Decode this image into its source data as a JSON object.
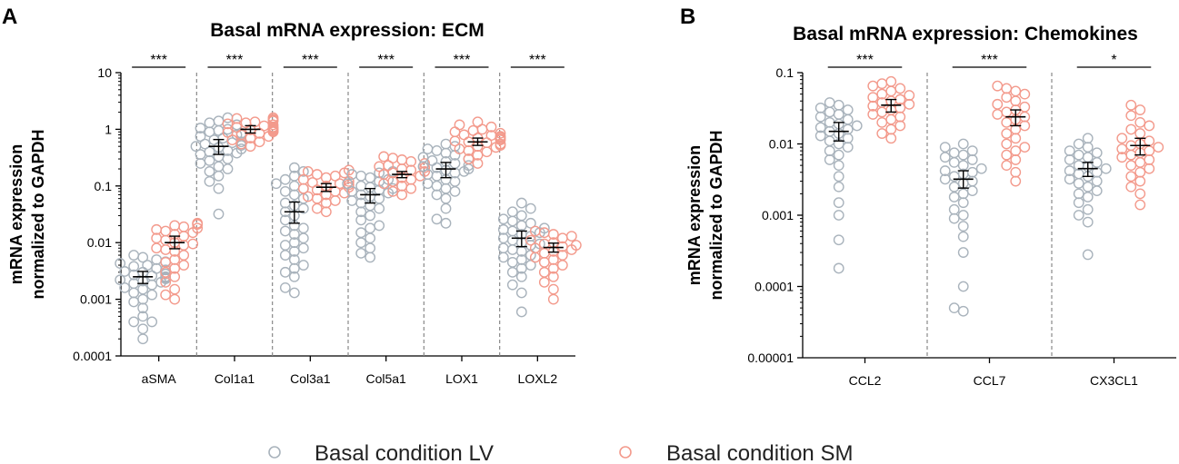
{
  "colors": {
    "lv": "#a9b3bc",
    "sm": "#f39a8c",
    "axis": "#000000",
    "divider": "#888888"
  },
  "legend": {
    "lv_label": "Basal condition LV",
    "sm_label": "Basal condition SM"
  },
  "y_axis_label": [
    "mRNA expression",
    "normalized to GAPDH"
  ],
  "chart_data": [
    {
      "panel": "A",
      "type": "scatter",
      "title": "Basal mRNA expression: ECM",
      "ylabel": "mRNA expression normalized to GAPDH",
      "yscale": "log",
      "ylim": [
        0.0001,
        10
      ],
      "yticks": [
        0.0001,
        0.001,
        0.01,
        0.1,
        1,
        10
      ],
      "ytick_labels": [
        "0.0001",
        "0.001",
        "0.01",
        "0.1",
        "1",
        "10"
      ],
      "categories": [
        "aSMA",
        "Col1a1",
        "Col3a1",
        "Col5a1",
        "LOX1",
        "LOXL2"
      ],
      "significance": [
        "***",
        "***",
        "***",
        "***",
        "***",
        "***"
      ],
      "series": [
        {
          "name": "Basal condition LV",
          "mean": [
            0.0025,
            0.5,
            0.035,
            0.07,
            0.2,
            0.012
          ],
          "err_low": [
            0.0019,
            0.36,
            0.022,
            0.05,
            0.14,
            0.0085
          ],
          "err_high": [
            0.0031,
            0.66,
            0.052,
            0.09,
            0.26,
            0.016
          ],
          "points": [
            [
              0.0002,
              0.0003,
              0.0004,
              0.0004,
              0.0005,
              0.0007,
              0.0009,
              0.001,
              0.0012,
              0.0013,
              0.0015,
              0.0016,
              0.0018,
              0.0019,
              0.002,
              0.0021,
              0.0022,
              0.0023,
              0.0024,
              0.0025,
              0.0026,
              0.0027,
              0.0028,
              0.003,
              0.0031,
              0.0033,
              0.0035,
              0.0038,
              0.004,
              0.0043,
              0.0046,
              0.005,
              0.0055,
              0.006
            ],
            [
              0.032,
              0.09,
              0.12,
              0.15,
              0.18,
              0.2,
              0.22,
              0.25,
              0.28,
              0.3,
              0.33,
              0.36,
              0.38,
              0.4,
              0.42,
              0.45,
              0.48,
              0.5,
              0.52,
              0.55,
              0.58,
              0.6,
              0.65,
              0.7,
              0.75,
              0.8,
              0.85,
              0.9,
              0.95,
              1.0,
              1.05,
              1.2,
              1.3,
              1.4,
              1.6
            ],
            [
              0.0013,
              0.0016,
              0.0025,
              0.003,
              0.0035,
              0.004,
              0.005,
              0.006,
              0.007,
              0.008,
              0.009,
              0.01,
              0.012,
              0.014,
              0.016,
              0.018,
              0.02,
              0.025,
              0.03,
              0.035,
              0.04,
              0.045,
              0.05,
              0.06,
              0.07,
              0.08,
              0.09,
              0.1,
              0.11,
              0.13,
              0.15,
              0.18,
              0.21
            ],
            [
              0.0055,
              0.0065,
              0.008,
              0.01,
              0.012,
              0.015,
              0.018,
              0.02,
              0.025,
              0.03,
              0.035,
              0.04,
              0.045,
              0.05,
              0.055,
              0.06,
              0.065,
              0.07,
              0.075,
              0.08,
              0.085,
              0.09,
              0.095,
              0.1,
              0.11,
              0.12,
              0.13,
              0.14,
              0.15,
              0.16,
              0.17,
              0.18
            ],
            [
              0.022,
              0.026,
              0.04,
              0.06,
              0.07,
              0.08,
              0.09,
              0.1,
              0.11,
              0.12,
              0.13,
              0.15,
              0.16,
              0.17,
              0.18,
              0.19,
              0.2,
              0.21,
              0.22,
              0.23,
              0.25,
              0.27,
              0.28,
              0.3,
              0.32,
              0.35,
              0.38,
              0.42,
              0.45,
              0.5,
              0.55
            ],
            [
              0.0006,
              0.0013,
              0.0018,
              0.0025,
              0.003,
              0.0035,
              0.004,
              0.0045,
              0.005,
              0.0055,
              0.006,
              0.007,
              0.0075,
              0.008,
              0.009,
              0.0095,
              0.01,
              0.011,
              0.012,
              0.013,
              0.014,
              0.015,
              0.016,
              0.017,
              0.018,
              0.02,
              0.022,
              0.024,
              0.026,
              0.03,
              0.035,
              0.04,
              0.05
            ]
          ]
        },
        {
          "name": "Basal condition SM",
          "mean": [
            0.01,
            1.0,
            0.095,
            0.16,
            0.6,
            0.0082
          ],
          "err_low": [
            0.0078,
            0.86,
            0.08,
            0.14,
            0.52,
            0.0068
          ],
          "err_high": [
            0.013,
            1.16,
            0.11,
            0.18,
            0.7,
            0.0098
          ],
          "points": [
            [
              0.001,
              0.0012,
              0.0015,
              0.002,
              0.0025,
              0.003,
              0.0035,
              0.004,
              0.0045,
              0.005,
              0.006,
              0.007,
              0.0075,
              0.008,
              0.009,
              0.0095,
              0.01,
              0.011,
              0.012,
              0.013,
              0.014,
              0.015,
              0.016,
              0.017,
              0.018,
              0.019,
              0.02,
              0.021,
              0.022
            ],
            [
              0.5,
              0.55,
              0.6,
              0.65,
              0.7,
              0.75,
              0.8,
              0.85,
              0.88,
              0.9,
              0.92,
              0.95,
              0.98,
              1.0,
              1.02,
              1.05,
              1.08,
              1.1,
              1.15,
              1.2,
              1.25,
              1.3,
              1.35,
              1.4,
              1.45,
              1.5,
              1.55,
              1.6
            ],
            [
              0.035,
              0.04,
              0.05,
              0.055,
              0.06,
              0.065,
              0.07,
              0.075,
              0.08,
              0.085,
              0.09,
              0.095,
              0.1,
              0.105,
              0.11,
              0.115,
              0.12,
              0.13,
              0.14,
              0.15,
              0.16,
              0.17,
              0.18,
              0.19
            ],
            [
              0.07,
              0.08,
              0.09,
              0.1,
              0.11,
              0.12,
              0.13,
              0.14,
              0.15,
              0.16,
              0.17,
              0.18,
              0.19,
              0.2,
              0.21,
              0.22,
              0.23,
              0.25,
              0.27,
              0.29,
              0.31,
              0.33
            ],
            [
              0.25,
              0.3,
              0.35,
              0.4,
              0.42,
              0.45,
              0.48,
              0.5,
              0.52,
              0.55,
              0.58,
              0.6,
              0.62,
              0.65,
              0.68,
              0.7,
              0.72,
              0.75,
              0.78,
              0.8,
              0.85,
              0.9,
              0.95,
              1.0,
              1.1,
              1.2,
              1.35
            ],
            [
              0.001,
              0.0015,
              0.002,
              0.0025,
              0.003,
              0.0035,
              0.004,
              0.0045,
              0.005,
              0.0055,
              0.006,
              0.0065,
              0.007,
              0.0075,
              0.008,
              0.0085,
              0.009,
              0.0095,
              0.01,
              0.011,
              0.012,
              0.013,
              0.014,
              0.015,
              0.016
            ]
          ]
        }
      ]
    },
    {
      "panel": "B",
      "type": "scatter",
      "title": "Basal mRNA expression: Chemokines",
      "ylabel": "mRNA expression normalized to GAPDH",
      "yscale": "log",
      "ylim": [
        1e-05,
        0.1
      ],
      "yticks": [
        1e-05,
        0.0001,
        0.001,
        0.01,
        0.1
      ],
      "ytick_labels": [
        "0.00001",
        "0.0001",
        "0.001",
        "0.01",
        "0.1"
      ],
      "categories": [
        "CCL2",
        "CCL7",
        "CX3CL1"
      ],
      "significance": [
        "***",
        "***",
        "*"
      ],
      "series": [
        {
          "name": "Basal condition LV",
          "mean": [
            0.015,
            0.0032,
            0.0045
          ],
          "err_low": [
            0.011,
            0.0024,
            0.0035
          ],
          "err_high": [
            0.02,
            0.0042,
            0.0055
          ],
          "points": [
            [
              0.00018,
              0.00045,
              0.001,
              0.0015,
              0.0025,
              0.0035,
              0.005,
              0.006,
              0.007,
              0.008,
              0.009,
              0.01,
              0.011,
              0.012,
              0.013,
              0.014,
              0.015,
              0.016,
              0.017,
              0.018,
              0.019,
              0.02,
              0.022,
              0.024,
              0.026,
              0.028,
              0.03,
              0.032,
              0.035,
              0.038
            ],
            [
              4.5e-05,
              5e-05,
              0.0001,
              0.0003,
              0.0005,
              0.0007,
              0.0009,
              0.001,
              0.0012,
              0.0015,
              0.0018,
              0.002,
              0.0022,
              0.0025,
              0.0028,
              0.003,
              0.0032,
              0.0035,
              0.0038,
              0.004,
              0.0042,
              0.0045,
              0.005,
              0.0055,
              0.006,
              0.0065,
              0.007,
              0.0075,
              0.008,
              0.009,
              0.01
            ],
            [
              0.00028,
              0.0008,
              0.001,
              0.0012,
              0.0015,
              0.0018,
              0.002,
              0.0022,
              0.0025,
              0.0028,
              0.003,
              0.0032,
              0.0035,
              0.0038,
              0.004,
              0.0042,
              0.0045,
              0.0048,
              0.005,
              0.0055,
              0.006,
              0.0065,
              0.007,
              0.0075,
              0.008,
              0.009,
              0.01,
              0.012
            ]
          ]
        },
        {
          "name": "Basal condition SM",
          "mean": [
            0.035,
            0.024,
            0.0095
          ],
          "err_low": [
            0.028,
            0.018,
            0.007
          ],
          "err_high": [
            0.042,
            0.03,
            0.012
          ],
          "points": [
            [
              0.012,
              0.014,
              0.016,
              0.018,
              0.02,
              0.022,
              0.024,
              0.026,
              0.028,
              0.03,
              0.032,
              0.034,
              0.036,
              0.038,
              0.04,
              0.042,
              0.045,
              0.048,
              0.05,
              0.055,
              0.06,
              0.065,
              0.07,
              0.075
            ],
            [
              0.003,
              0.004,
              0.005,
              0.006,
              0.007,
              0.008,
              0.009,
              0.01,
              0.012,
              0.014,
              0.016,
              0.018,
              0.02,
              0.022,
              0.024,
              0.026,
              0.028,
              0.03,
              0.033,
              0.036,
              0.04,
              0.045,
              0.05,
              0.055,
              0.06,
              0.065
            ],
            [
              0.0014,
              0.002,
              0.0025,
              0.003,
              0.0035,
              0.004,
              0.0045,
              0.005,
              0.0055,
              0.006,
              0.0065,
              0.007,
              0.0075,
              0.008,
              0.0085,
              0.009,
              0.0095,
              0.01,
              0.011,
              0.012,
              0.014,
              0.016,
              0.018,
              0.02,
              0.025,
              0.03,
              0.035
            ]
          ]
        }
      ]
    }
  ]
}
